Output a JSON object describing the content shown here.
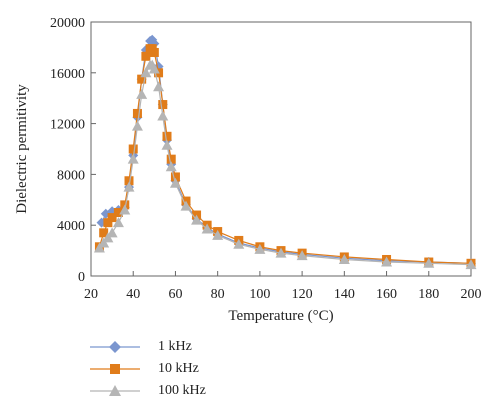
{
  "chart_data": {
    "type": "scatter",
    "xlabel": "Temperature (°C)",
    "ylabel": "Dielectric permitivity",
    "xlim": [
      20,
      200
    ],
    "ylim": [
      0,
      20000
    ],
    "x_ticks": [
      20,
      40,
      60,
      80,
      100,
      120,
      140,
      160,
      180,
      200
    ],
    "y_ticks": [
      0,
      4000,
      8000,
      12000,
      16000,
      20000
    ],
    "grid": false,
    "legend_placement": "bottom-left",
    "series": [
      {
        "name": "1 kHz",
        "color": "#7b96cf",
        "marker": "diamond",
        "x": [
          25,
          27,
          30,
          33,
          36,
          38,
          40,
          42,
          44,
          46,
          48,
          49,
          50,
          52,
          54,
          56,
          58,
          60,
          65,
          70,
          75,
          80,
          90,
          100,
          110,
          120,
          140,
          160,
          180,
          200
        ],
        "y": [
          4200,
          4900,
          5100,
          5200,
          5400,
          7000,
          9500,
          12500,
          15500,
          17800,
          18500,
          18600,
          18300,
          16500,
          13500,
          10700,
          8800,
          7500,
          5600,
          4500,
          3800,
          3300,
          2600,
          2200,
          1900,
          1700,
          1400,
          1200,
          1100,
          1000
        ]
      },
      {
        "name": "10 kHz",
        "color": "#e07c1a",
        "marker": "square",
        "x": [
          24,
          26,
          28,
          30,
          33,
          36,
          38,
          40,
          42,
          44,
          46,
          48,
          49,
          50,
          52,
          54,
          56,
          58,
          60,
          65,
          70,
          75,
          80,
          90,
          100,
          110,
          120,
          140,
          160,
          180,
          200
        ],
        "y": [
          2300,
          3400,
          4200,
          4600,
          5000,
          5600,
          7500,
          10000,
          12800,
          15500,
          17300,
          17900,
          17900,
          17600,
          16000,
          13500,
          11000,
          9200,
          7800,
          5900,
          4800,
          4000,
          3500,
          2800,
          2300,
          2000,
          1800,
          1500,
          1300,
          1100,
          1000
        ]
      },
      {
        "name": "100 kHz",
        "color": "#b5b5b5",
        "marker": "triangle",
        "x": [
          24,
          26,
          28,
          30,
          33,
          36,
          38,
          40,
          42,
          44,
          46,
          48,
          49,
          50,
          52,
          54,
          56,
          58,
          60,
          65,
          70,
          75,
          80,
          90,
          100,
          110,
          120,
          140,
          160,
          180,
          200
        ],
        "y": [
          2200,
          2600,
          3000,
          3400,
          4200,
          5200,
          7000,
          9200,
          11800,
          14300,
          16000,
          16600,
          16600,
          16300,
          14900,
          12600,
          10300,
          8600,
          7300,
          5500,
          4400,
          3700,
          3200,
          2500,
          2100,
          1800,
          1600,
          1300,
          1100,
          1000,
          900
        ]
      }
    ]
  }
}
